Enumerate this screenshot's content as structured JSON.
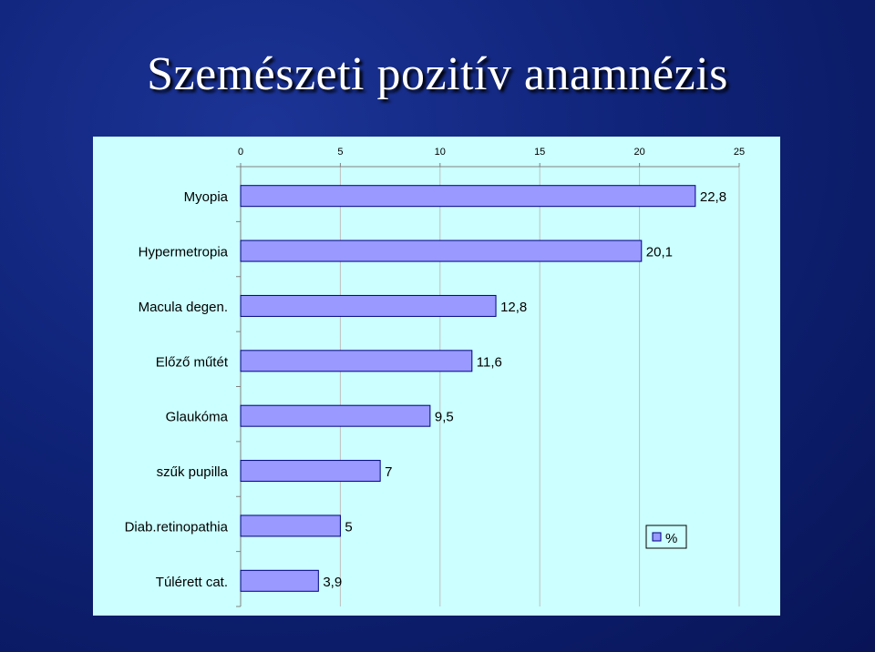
{
  "slide": {
    "title": "Szemészeti pozitív anamnézis"
  },
  "chart_data": {
    "type": "bar",
    "orientation": "horizontal",
    "title": "",
    "xlabel": "",
    "ylabel": "",
    "xlim": [
      0,
      25
    ],
    "x_ticks": [
      "0",
      "5",
      "10",
      "15",
      "20",
      "25"
    ],
    "x_axis_position": "top",
    "grid": true,
    "legend_position": "bottom-right",
    "categories": [
      "Myopia",
      "Hypermetropia",
      "Macula degen.",
      "Előző műtét",
      "Glaukóma",
      "szűk pupilla",
      "Diab.retinopathia",
      "Túlérett cat."
    ],
    "series": [
      {
        "name": "%",
        "values": [
          22.8,
          20.1,
          12.8,
          11.6,
          9.5,
          7,
          5,
          3.9
        ],
        "labels": [
          "22,8",
          "20,1",
          "12,8",
          "11,6",
          "9,5",
          "7",
          "5",
          "3,9"
        ],
        "color": "#9999ff"
      }
    ],
    "colors": {
      "panel": "#ccffff",
      "grid": "#c0c0c0",
      "bar_border": "#000080"
    }
  }
}
